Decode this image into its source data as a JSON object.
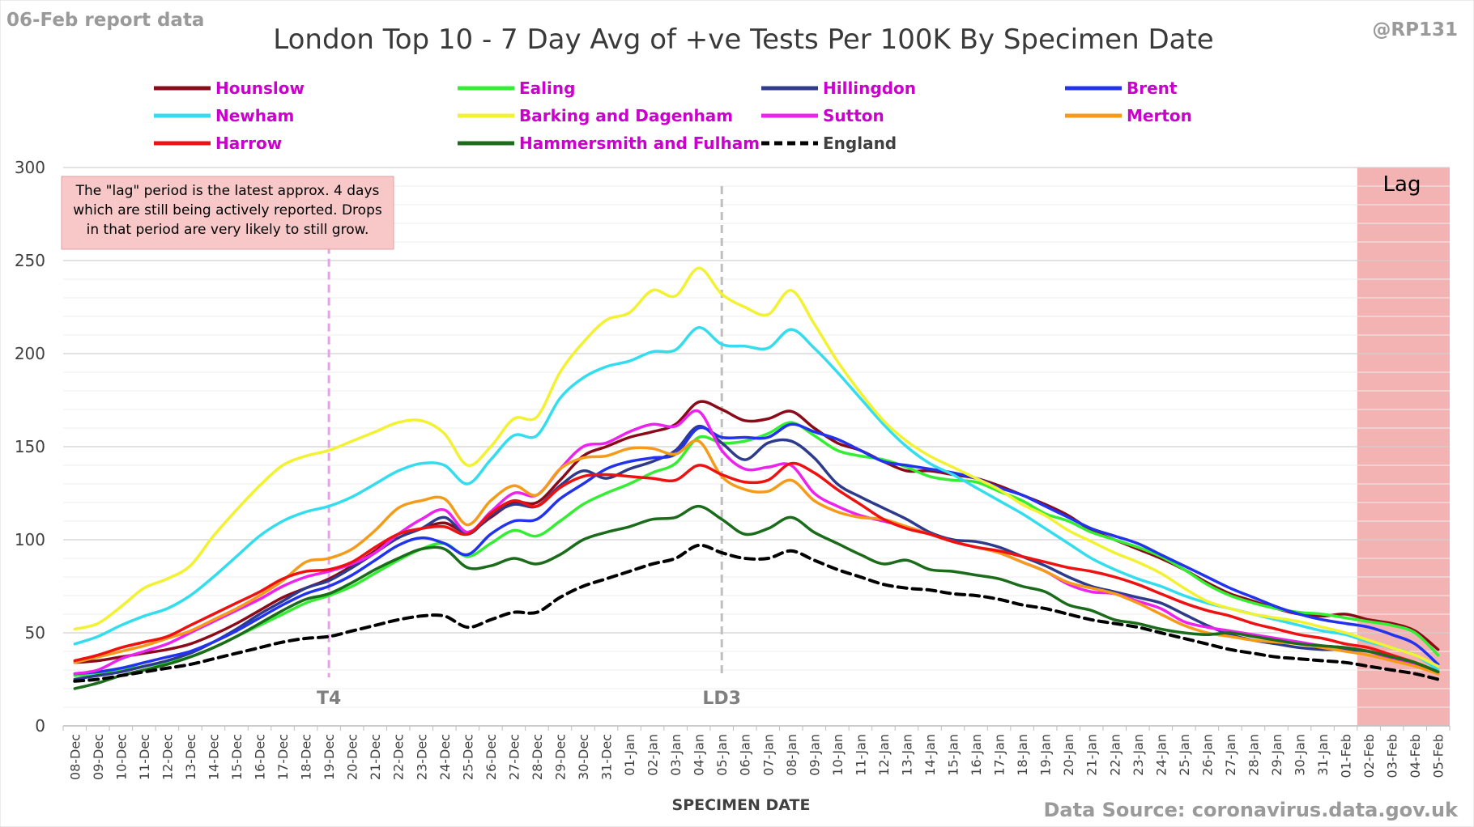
{
  "header": {
    "report_label": "06-Feb report data",
    "title": "London Top 10 - 7 Day Avg of +ve Tests Per 100K By Specimen Date",
    "handle": "@RP131"
  },
  "footer": {
    "source": "Data Source: coronavirus.data.gov.uk"
  },
  "annotations": {
    "note_lines": [
      "The \"lag\" period is the latest approx. 4 days",
      "which are still being actively reported.  Drops",
      "in that period are very likely to still grow."
    ],
    "lag_label": "Lag",
    "marker_t4": "T4",
    "marker_ld3": "LD3"
  },
  "chart_data": {
    "type": "line",
    "title": "London Top 10 - 7 Day Avg of +ve Tests Per 100K By Specimen Date",
    "xlabel": "SPECIMEN DATE",
    "ylabel": "",
    "ylim": [
      0,
      300
    ],
    "yticks": [
      0,
      50,
      100,
      150,
      200,
      250,
      300
    ],
    "grid": true,
    "legend_position": "top",
    "categories": [
      "08-Dec",
      "09-Dec",
      "10-Dec",
      "11-Dec",
      "12-Dec",
      "13-Dec",
      "14-Dec",
      "15-Dec",
      "16-Dec",
      "17-Dec",
      "18-Dec",
      "19-Dec",
      "20-Dec",
      "21-Dec",
      "22-Dec",
      "23-Dec",
      "24-Dec",
      "25-Dec",
      "26-Dec",
      "27-Dec",
      "28-Dec",
      "29-Dec",
      "30-Dec",
      "31-Dec",
      "01-Jan",
      "02-Jan",
      "03-Jan",
      "04-Jan",
      "05-Jan",
      "06-Jan",
      "07-Jan",
      "08-Jan",
      "09-Jan",
      "10-Jan",
      "11-Jan",
      "12-Jan",
      "13-Jan",
      "14-Jan",
      "15-Jan",
      "16-Jan",
      "17-Jan",
      "18-Jan",
      "19-Jan",
      "20-Jan",
      "21-Jan",
      "22-Jan",
      "23-Jan",
      "24-Jan",
      "25-Jan",
      "26-Jan",
      "27-Jan",
      "28-Jan",
      "29-Jan",
      "30-Jan",
      "31-Jan",
      "01-Feb",
      "02-Feb",
      "03-Feb",
      "04-Feb",
      "05-Feb"
    ],
    "markers": [
      {
        "label": "T4",
        "category": "19-Dec",
        "color": "#e8a0e8"
      },
      {
        "label": "LD3",
        "category": "05-Jan",
        "color": "#bfbfbf"
      }
    ],
    "lag_period": {
      "label": "Lag",
      "from": "02-Feb",
      "to": "05-Feb",
      "color": "#f4b3b3"
    },
    "series": [
      {
        "name": "Hounslow",
        "color": "#8b0a1a",
        "dashed": false,
        "values": [
          34,
          35,
          37,
          39,
          41,
          44,
          49,
          55,
          62,
          69,
          74,
          79,
          86,
          94,
          103,
          106,
          109,
          104,
          112,
          120,
          120,
          132,
          145,
          150,
          155,
          158,
          162,
          174,
          170,
          164,
          165,
          169,
          160,
          152,
          148,
          142,
          137,
          137,
          135,
          133,
          129,
          124,
          119,
          113,
          105,
          100,
          95,
          90,
          84,
          77,
          71,
          67,
          63,
          60,
          59,
          60,
          57,
          55,
          51,
          41
        ]
      },
      {
        "name": "Ealing",
        "color": "#33ee33",
        "dashed": false,
        "values": [
          27,
          28,
          30,
          32,
          34,
          37,
          42,
          48,
          54,
          60,
          66,
          70,
          75,
          82,
          89,
          95,
          98,
          91,
          98,
          105,
          102,
          110,
          119,
          125,
          130,
          136,
          141,
          155,
          152,
          153,
          157,
          163,
          156,
          148,
          145,
          143,
          139,
          134,
          132,
          131,
          126,
          121,
          114,
          110,
          104,
          100,
          96,
          91,
          84,
          76,
          70,
          66,
          63,
          61,
          60,
          58,
          56,
          54,
          50,
          38
        ]
      },
      {
        "name": "Hillingdon",
        "color": "#2e3a8c",
        "dashed": false,
        "values": [
          25,
          27,
          29,
          32,
          35,
          39,
          45,
          52,
          60,
          67,
          74,
          78,
          85,
          93,
          101,
          106,
          112,
          103,
          113,
          119,
          118,
          129,
          137,
          133,
          138,
          142,
          148,
          161,
          152,
          143,
          152,
          153,
          144,
          130,
          123,
          117,
          111,
          104,
          100,
          99,
          96,
          91,
          86,
          80,
          75,
          72,
          69,
          66,
          60,
          54,
          49,
          46,
          44,
          42,
          41,
          41,
          40,
          37,
          34,
          28
        ]
      },
      {
        "name": "Brent",
        "color": "#2233ee",
        "dashed": false,
        "values": [
          28,
          29,
          31,
          34,
          37,
          40,
          45,
          51,
          58,
          65,
          71,
          75,
          81,
          89,
          97,
          101,
          98,
          92,
          103,
          110,
          111,
          122,
          130,
          138,
          142,
          144,
          146,
          160,
          155,
          155,
          155,
          162,
          158,
          154,
          148,
          142,
          140,
          138,
          136,
          133,
          128,
          124,
          118,
          112,
          106,
          102,
          98,
          92,
          86,
          80,
          74,
          69,
          64,
          60,
          57,
          55,
          53,
          49,
          44,
          33
        ]
      },
      {
        "name": "Newham",
        "color": "#33ddee",
        "dashed": false,
        "values": [
          44,
          48,
          54,
          59,
          63,
          70,
          80,
          91,
          102,
          110,
          115,
          118,
          123,
          130,
          137,
          141,
          140,
          130,
          143,
          156,
          156,
          176,
          187,
          193,
          196,
          201,
          202,
          214,
          205,
          204,
          203,
          213,
          203,
          190,
          176,
          162,
          150,
          141,
          135,
          128,
          121,
          114,
          106,
          98,
          90,
          84,
          79,
          75,
          70,
          66,
          63,
          60,
          57,
          54,
          51,
          49,
          45,
          42,
          38,
          30
        ]
      },
      {
        "name": "Barking and Dagenham",
        "color": "#f2f232",
        "dashed": false,
        "values": [
          52,
          55,
          64,
          74,
          79,
          86,
          102,
          116,
          129,
          140,
          145,
          148,
          153,
          158,
          163,
          164,
          157,
          140,
          150,
          165,
          166,
          190,
          206,
          218,
          222,
          234,
          231,
          246,
          232,
          225,
          221,
          234,
          216,
          196,
          179,
          164,
          153,
          145,
          139,
          133,
          127,
          119,
          113,
          105,
          99,
          93,
          88,
          82,
          74,
          67,
          63,
          60,
          58,
          56,
          53,
          50,
          46,
          42,
          38,
          32
        ]
      },
      {
        "name": "Sutton",
        "color": "#ee22ee",
        "dashed": false,
        "values": [
          28,
          30,
          36,
          40,
          44,
          50,
          56,
          62,
          68,
          75,
          80,
          83,
          87,
          93,
          103,
          111,
          116,
          104,
          115,
          125,
          124,
          138,
          150,
          152,
          158,
          162,
          161,
          169,
          148,
          138,
          139,
          140,
          125,
          118,
          113,
          110,
          107,
          103,
          99,
          96,
          93,
          88,
          83,
          76,
          72,
          71,
          67,
          63,
          56,
          53,
          51,
          49,
          47,
          45,
          43,
          42,
          40,
          36,
          33,
          28
        ]
      },
      {
        "name": "Merton",
        "color": "#f59b1a",
        "dashed": false,
        "values": [
          34,
          37,
          40,
          43,
          47,
          51,
          57,
          63,
          70,
          78,
          88,
          90,
          95,
          105,
          117,
          121,
          122,
          108,
          121,
          129,
          124,
          138,
          144,
          145,
          149,
          149,
          146,
          153,
          134,
          127,
          126,
          132,
          121,
          115,
          112,
          111,
          107,
          103,
          99,
          96,
          93,
          88,
          83,
          77,
          74,
          71,
          66,
          60,
          54,
          50,
          48,
          46,
          45,
          44,
          42,
          40,
          38,
          35,
          32,
          28
        ]
      },
      {
        "name": "Harrow",
        "color": "#ee1111",
        "dashed": false,
        "values": [
          35,
          38,
          42,
          45,
          48,
          54,
          60,
          66,
          72,
          79,
          83,
          84,
          88,
          96,
          103,
          106,
          107,
          103,
          114,
          121,
          118,
          128,
          134,
          135,
          134,
          133,
          132,
          140,
          135,
          131,
          132,
          141,
          136,
          127,
          119,
          111,
          106,
          103,
          99,
          96,
          94,
          91,
          88,
          85,
          83,
          80,
          76,
          71,
          66,
          62,
          59,
          55,
          52,
          49,
          47,
          44,
          42,
          38,
          34,
          29
        ]
      },
      {
        "name": "Hammersmith and Fulham",
        "color": "#1a6b1a",
        "dashed": false,
        "values": [
          20,
          23,
          27,
          30,
          33,
          37,
          42,
          48,
          55,
          62,
          68,
          71,
          77,
          84,
          90,
          95,
          95,
          85,
          86,
          90,
          87,
          92,
          100,
          104,
          107,
          111,
          112,
          118,
          111,
          103,
          106,
          112,
          104,
          98,
          92,
          87,
          89,
          84,
          83,
          81,
          79,
          75,
          72,
          65,
          62,
          57,
          55,
          52,
          50,
          49,
          50,
          48,
          46,
          44,
          43,
          42,
          40,
          37,
          34,
          29
        ]
      },
      {
        "name": "England",
        "color": "#000000",
        "dashed": true,
        "values": [
          24,
          25,
          27,
          29,
          31,
          33,
          36,
          39,
          42,
          45,
          47,
          48,
          51,
          54,
          57,
          59,
          59,
          53,
          57,
          61,
          61,
          69,
          75,
          79,
          83,
          87,
          90,
          97,
          93,
          90,
          90,
          94,
          89,
          84,
          80,
          76,
          74,
          73,
          71,
          70,
          68,
          65,
          63,
          60,
          57,
          55,
          53,
          50,
          47,
          44,
          41,
          39,
          37,
          36,
          35,
          34,
          32,
          30,
          28,
          25
        ]
      }
    ]
  }
}
